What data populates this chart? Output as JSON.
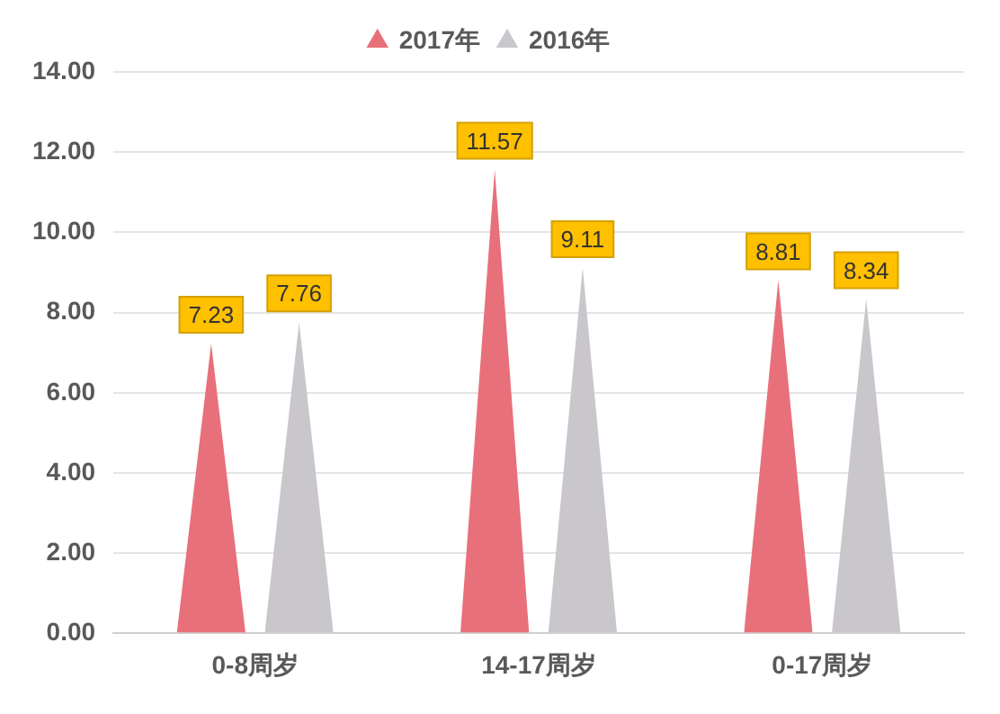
{
  "chart_data": {
    "type": "bar",
    "categories": [
      "0-8周岁",
      "14-17周岁",
      "0-17周岁"
    ],
    "series": [
      {
        "name": "2017年",
        "color": "#e8707a",
        "values": [
          7.23,
          11.57,
          8.81
        ]
      },
      {
        "name": "2016年",
        "color": "#c9c7cc",
        "values": [
          7.76,
          9.11,
          8.34
        ]
      }
    ],
    "ylim": [
      0,
      14
    ],
    "yticks": [
      {
        "value": 0,
        "label": "0.00"
      },
      {
        "value": 2,
        "label": "2.00"
      },
      {
        "value": 4,
        "label": "4.00"
      },
      {
        "value": 6,
        "label": "6.00"
      },
      {
        "value": 8,
        "label": "8.00"
      },
      {
        "value": 10,
        "label": "10.00"
      },
      {
        "value": 12,
        "label": "12.00"
      },
      {
        "value": 14,
        "label": "14.00"
      }
    ],
    "grid": "y",
    "legend": "top",
    "data_labels": true
  }
}
